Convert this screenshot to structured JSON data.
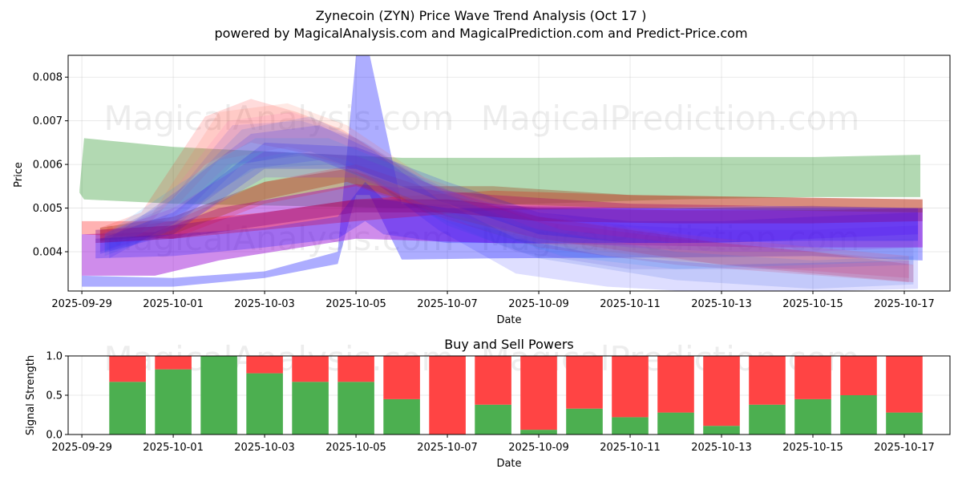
{
  "figure": {
    "title_line1": "Zynecoin (ZYN) Price Wave Trend Analysis (Oct 17 )",
    "title_line2": "powered by MagicalAnalysis.com and MagicalPrediction.com and Predict-Price.com",
    "watermark_top_left": "MagicalAnalysis.com",
    "watermark_top_right": "MagicalPrediction.com",
    "watermark_mid_left": "MagicalAnalysis.com",
    "watermark_mid_right": "MagicalPrediction.com",
    "watermark_bottom_left": "MagicalAnalysis.com",
    "watermark_bottom_right": "MagicalPrediction.com"
  },
  "chart_data": [
    {
      "type": "area",
      "title": "",
      "xlabel": "Date",
      "ylabel": "Price",
      "xlim": [
        "2025-09-28.7",
        "2025-10-17.8"
      ],
      "ylim": [
        0.0031,
        0.0085
      ],
      "yticks": [
        0.004,
        0.005,
        0.006,
        0.007,
        0.008
      ],
      "ytick_labels": [
        "0.004",
        "0.005",
        "0.006",
        "0.007",
        "0.008"
      ],
      "xtick_labels": [
        "2025-09-29",
        "2025-10-01",
        "2025-10-03",
        "2025-10-05",
        "2025-10-07",
        "2025-10-09",
        "2025-10-11",
        "2025-10-13",
        "2025-10-15",
        "2025-10-17"
      ],
      "grid": true,
      "bands": [
        {
          "color": "#008000",
          "opacity": 0.3,
          "x": [
            -0.05,
            0.05,
            2,
            7,
            10,
            13,
            16,
            18.35
          ],
          "upper": [
            0.00542,
            0.0066,
            0.0064,
            0.00615,
            0.00615,
            0.00617,
            0.00617,
            0.00622
          ],
          "lower": [
            0.00535,
            0.0052,
            0.0051,
            0.005,
            0.0051,
            0.0052,
            0.00525,
            0.00525
          ]
        },
        {
          "color": "#0000ff",
          "opacity": 0.32,
          "x": [
            0,
            2,
            4,
            5.6,
            6.0,
            6.3,
            7.0,
            9,
            13,
            16,
            18.4
          ],
          "upper": [
            0.00345,
            0.0034,
            0.00355,
            0.004,
            0.0085,
            0.0085,
            0.0051,
            0.00505,
            0.005,
            0.00505,
            0.005
          ],
          "lower": [
            0.0032,
            0.0032,
            0.0034,
            0.00372,
            0.0053,
            0.0053,
            0.00382,
            0.00385,
            0.00387,
            0.0039,
            0.0038
          ]
        },
        {
          "color": "#9400d3",
          "opacity": 0.45,
          "x": [
            0,
            1.6,
            3,
            6,
            9,
            12,
            15,
            18.4
          ],
          "upper": [
            0.0044,
            0.00445,
            0.005,
            0.00555,
            0.0053,
            0.0051,
            0.00505,
            0.005
          ],
          "lower": [
            0.00345,
            0.00345,
            0.0038,
            0.0043,
            0.0042,
            0.00415,
            0.0041,
            0.0041
          ]
        },
        {
          "color": "#ff0000",
          "opacity": 0.3,
          "x": [
            0,
            2,
            4,
            6,
            9,
            12,
            15,
            18.4
          ],
          "upper": [
            0.0047,
            0.0047,
            0.0049,
            0.0052,
            0.0054,
            0.0053,
            0.00525,
            0.0052
          ],
          "lower": [
            0.0044,
            0.0043,
            0.0045,
            0.0047,
            0.00495,
            0.005,
            0.00505,
            0.005
          ]
        },
        {
          "color": "#a0522d",
          "opacity": 0.4,
          "x": [
            0.4,
            2,
            4,
            5.8,
            7,
            9,
            12,
            15,
            18.4
          ],
          "upper": [
            0.00455,
            0.0048,
            0.0056,
            0.0059,
            0.0055,
            0.0055,
            0.0053,
            0.00525,
            0.0052
          ],
          "lower": [
            0.00425,
            0.0044,
            0.0052,
            0.0056,
            0.0052,
            0.0051,
            0.005,
            0.00495,
            0.0049
          ]
        },
        {
          "color": "#ff0000",
          "opacity": 0.14,
          "x": [
            0.4,
            1.3,
            2.7,
            3.7,
            4.7,
            5.7,
            7.5,
            10,
            13,
            18.1
          ],
          "upper": [
            0.00455,
            0.0049,
            0.0071,
            0.0075,
            0.0072,
            0.0068,
            0.0056,
            0.0047,
            0.0043,
            0.0038
          ],
          "lower": [
            0.00425,
            0.00445,
            0.006,
            0.0065,
            0.0063,
            0.006,
            0.0049,
            0.0041,
            0.0037,
            0.0033
          ]
        },
        {
          "color": "#ff6347",
          "opacity": 0.14,
          "x": [
            0.4,
            1.5,
            3.0,
            4.5,
            5.8,
            7.5,
            10,
            13,
            18.1
          ],
          "upper": [
            0.0045,
            0.0048,
            0.0072,
            0.0074,
            0.0069,
            0.0057,
            0.0048,
            0.0044,
            0.0039
          ],
          "lower": [
            0.0042,
            0.0044,
            0.0061,
            0.0064,
            0.0061,
            0.005,
            0.0042,
            0.0038,
            0.0034
          ]
        },
        {
          "color": "#ff69b4",
          "opacity": 0.14,
          "x": [
            0.5,
            1.7,
            3.2,
            4.6,
            6.0,
            8.0,
            11,
            14,
            18.1
          ],
          "upper": [
            0.00445,
            0.005,
            0.007,
            0.0072,
            0.0066,
            0.0054,
            0.0047,
            0.0043,
            0.0039
          ],
          "lower": [
            0.00415,
            0.0045,
            0.006,
            0.0063,
            0.0058,
            0.0047,
            0.0041,
            0.0037,
            0.0034
          ]
        },
        {
          "color": "#ff0000",
          "opacity": 0.18,
          "x": [
            0.4,
            2,
            4,
            6,
            8,
            10,
            12,
            14,
            16,
            18.2
          ],
          "upper": [
            0.0045,
            0.0047,
            0.0056,
            0.006,
            0.0053,
            0.0048,
            0.0045,
            0.0042,
            0.004,
            0.0037
          ],
          "lower": [
            0.0042,
            0.0043,
            0.0051,
            0.0055,
            0.0048,
            0.0043,
            0.004,
            0.0037,
            0.0035,
            0.0033
          ]
        },
        {
          "color": "#6a5acd",
          "opacity": 0.16,
          "x": [
            0.5,
            1.8,
            3.3,
            4.8,
            6.0,
            7.5,
            9.5,
            12,
            15,
            18.2
          ],
          "upper": [
            0.0044,
            0.005,
            0.0069,
            0.007,
            0.0066,
            0.0056,
            0.0046,
            0.0042,
            0.0042,
            0.0043
          ],
          "lower": [
            0.004,
            0.0044,
            0.006,
            0.0062,
            0.0059,
            0.0049,
            0.004,
            0.0036,
            0.0036,
            0.0037
          ]
        },
        {
          "color": "#4169e1",
          "opacity": 0.16,
          "x": [
            0.5,
            2.0,
            3.5,
            5.0,
            6.2,
            8.0,
            10,
            13,
            16,
            18.2
          ],
          "upper": [
            0.0044,
            0.0052,
            0.0068,
            0.0071,
            0.0065,
            0.0053,
            0.0045,
            0.004,
            0.0038,
            0.0039
          ],
          "lower": [
            0.0039,
            0.0045,
            0.006,
            0.0063,
            0.0058,
            0.0046,
            0.00385,
            0.00335,
            0.00315,
            0.00325
          ]
        },
        {
          "color": "#0000ff",
          "opacity": 0.13,
          "x": [
            0.6,
            2.1,
            3.7,
            5.2,
            6.4,
            7.8,
            9.5,
            11.5,
            14,
            18.3
          ],
          "upper": [
            0.0043,
            0.0054,
            0.0067,
            0.0069,
            0.0063,
            0.0052,
            0.0043,
            0.0039,
            0.0037,
            0.0038
          ],
          "lower": [
            0.00385,
            0.0047,
            0.0059,
            0.0061,
            0.0056,
            0.0045,
            0.0035,
            0.0032,
            0.00305,
            0.00315
          ]
        },
        {
          "color": "#1e90ff",
          "opacity": 0.14,
          "x": [
            0.5,
            2.2,
            3.8,
            5.4,
            6.8,
            8.5,
            10.5,
            13,
            16,
            18.3
          ],
          "upper": [
            0.0044,
            0.0056,
            0.0066,
            0.0066,
            0.006,
            0.0052,
            0.0045,
            0.0042,
            0.0043,
            0.0044
          ],
          "lower": [
            0.004,
            0.0049,
            0.0059,
            0.006,
            0.0054,
            0.0046,
            0.0039,
            0.0036,
            0.0037,
            0.0038
          ]
        },
        {
          "color": "#8a2be2",
          "opacity": 0.2,
          "x": [
            0.4,
            2,
            4,
            6,
            8,
            10,
            12,
            14,
            16,
            18.3
          ],
          "upper": [
            0.0044,
            0.005,
            0.0063,
            0.0062,
            0.0054,
            0.0048,
            0.0046,
            0.0045,
            0.0045,
            0.0046
          ],
          "lower": [
            0.004,
            0.0045,
            0.0057,
            0.0057,
            0.0049,
            0.0043,
            0.0041,
            0.004,
            0.004,
            0.0041
          ]
        },
        {
          "color": "#0000ff",
          "opacity": 0.16,
          "x": [
            0.4,
            2,
            4,
            6,
            8,
            10,
            12,
            14,
            16,
            18.3
          ],
          "upper": [
            0.0043,
            0.0049,
            0.0065,
            0.0064,
            0.0056,
            0.0049,
            0.0047,
            0.0047,
            0.0048,
            0.0049
          ],
          "lower": [
            0.00395,
            0.0044,
            0.0059,
            0.0059,
            0.0051,
            0.0044,
            0.0042,
            0.0042,
            0.0043,
            0.0044
          ]
        },
        {
          "color": "#0000ff",
          "opacity": 0.22,
          "x": [
            0.3,
            2,
            4,
            5.6,
            6.2,
            6.6,
            8,
            10,
            13,
            16,
            18.3
          ],
          "upper": [
            0.0043,
            0.0044,
            0.00455,
            0.0048,
            0.0056,
            0.0052,
            0.005,
            0.005,
            0.005,
            0.005,
            0.005
          ],
          "lower": [
            0.00385,
            0.0039,
            0.0041,
            0.0043,
            0.0047,
            0.0044,
            0.0042,
            0.0042,
            0.0042,
            0.00425,
            0.00425
          ]
        },
        {
          "color": "#800080",
          "opacity": 0.35,
          "x": [
            0.3,
            2,
            4,
            6,
            8,
            10,
            13,
            16,
            18.4
          ],
          "upper": [
            0.0045,
            0.0046,
            0.0049,
            0.0052,
            0.0052,
            0.005,
            0.00495,
            0.00495,
            0.005
          ],
          "lower": [
            0.0042,
            0.0043,
            0.0046,
            0.0049,
            0.0049,
            0.0047,
            0.00465,
            0.00465,
            0.0047
          ]
        }
      ]
    },
    {
      "type": "bar",
      "title": "Buy and Sell Powers",
      "xlabel": "Date",
      "ylabel": "Signal Strength",
      "ylim": [
        0,
        1
      ],
      "yticks": [
        0.0,
        0.5,
        1.0
      ],
      "ytick_labels": [
        "0.0",
        "0.5",
        "1.0"
      ],
      "xtick_labels": [
        "2025-09-29",
        "2025-10-01",
        "2025-10-03",
        "2025-10-05",
        "2025-10-07",
        "2025-10-09",
        "2025-10-11",
        "2025-10-13",
        "2025-10-15",
        "2025-10-17"
      ],
      "grid": true,
      "categories": [
        "2025-09-30",
        "2025-10-01",
        "2025-10-02",
        "2025-10-03",
        "2025-10-04",
        "2025-10-05",
        "2025-10-06",
        "2025-10-07",
        "2025-10-08",
        "2025-10-09",
        "2025-10-10",
        "2025-10-11",
        "2025-10-12",
        "2025-10-13",
        "2025-10-14",
        "2025-10-15",
        "2025-10-16",
        "2025-10-17"
      ],
      "series": [
        {
          "name": "Buy",
          "color": "#4caf50",
          "values": [
            0.67,
            0.83,
            1.0,
            0.78,
            0.67,
            0.67,
            0.45,
            0.0,
            0.38,
            0.06,
            0.33,
            0.22,
            0.28,
            0.11,
            0.38,
            0.45,
            0.5,
            0.28
          ]
        },
        {
          "name": "Sell",
          "color": "#ff4444",
          "values": [
            0.33,
            0.17,
            0.0,
            0.22,
            0.33,
            0.33,
            0.55,
            1.0,
            0.62,
            0.94,
            0.67,
            0.78,
            0.72,
            0.89,
            0.62,
            0.55,
            0.5,
            0.72
          ]
        }
      ]
    }
  ]
}
